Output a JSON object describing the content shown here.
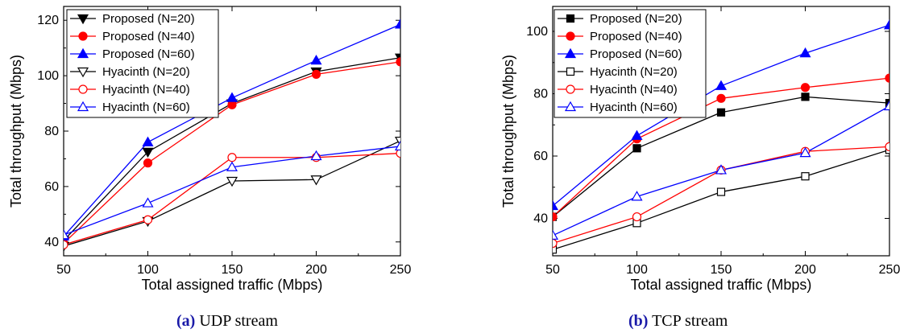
{
  "chart_data": [
    {
      "type": "line",
      "xlabel": "Total assigned traffic (Mbps)",
      "ylabel": "Total throughput (Mbps)",
      "x": [
        50,
        100,
        150,
        200,
        250
      ],
      "xlim": [
        50,
        250
      ],
      "ylim": [
        35,
        125
      ],
      "xticks": [
        50,
        100,
        150,
        200,
        250
      ],
      "yticks": [
        40,
        60,
        80,
        100,
        120
      ],
      "grid": false,
      "legend_position": "top-left",
      "series": [
        {
          "name": "Proposed (N=20)",
          "values": [
            40.5,
            72.5,
            90,
            101.5,
            106.5
          ],
          "color": "#000000",
          "marker": "triangle-down",
          "filled": true
        },
        {
          "name": "Proposed (N=40)",
          "values": [
            39.5,
            68.5,
            89.5,
            100.5,
            105
          ],
          "color": "#ff0000",
          "marker": "circle",
          "filled": true
        },
        {
          "name": "Proposed (N=60)",
          "values": [
            42,
            76,
            92,
            105.5,
            118.5
          ],
          "color": "#0000ff",
          "marker": "triangle-up",
          "filled": true
        },
        {
          "name": "Hyacinth (N=20)",
          "values": [
            38.5,
            47.5,
            62,
            62.5,
            76.5
          ],
          "color": "#000000",
          "marker": "triangle-down",
          "filled": false
        },
        {
          "name": "Hyacinth (N=40)",
          "values": [
            39,
            48,
            70.5,
            70.5,
            72
          ],
          "color": "#ff0000",
          "marker": "circle",
          "filled": false
        },
        {
          "name": "Hyacinth (N=60)",
          "values": [
            42.5,
            54,
            67,
            71,
            74.5
          ],
          "color": "#0000ff",
          "marker": "triangle-up",
          "filled": false
        }
      ],
      "caption_label": "(a)",
      "caption_text": "UDP stream"
    },
    {
      "type": "line",
      "xlabel": "Total assigned traffic (Mbps)",
      "ylabel": "Total throughput (Mbps)",
      "x": [
        50,
        100,
        150,
        200,
        250
      ],
      "xlim": [
        50,
        250
      ],
      "ylim": [
        28,
        108
      ],
      "xticks": [
        50,
        100,
        150,
        200,
        250
      ],
      "yticks": [
        40,
        60,
        80,
        100
      ],
      "grid": false,
      "legend_position": "top-left",
      "series": [
        {
          "name": "Proposed (N=20)",
          "values": [
            40.5,
            62.5,
            74,
            79,
            77
          ],
          "color": "#000000",
          "marker": "square",
          "filled": true
        },
        {
          "name": "Proposed (N=40)",
          "values": [
            40.5,
            65.5,
            78.5,
            82,
            85
          ],
          "color": "#ff0000",
          "marker": "circle",
          "filled": true
        },
        {
          "name": "Proposed (N=60)",
          "values": [
            44,
            66.5,
            82.5,
            93,
            102
          ],
          "color": "#0000ff",
          "marker": "triangle-up",
          "filled": true
        },
        {
          "name": "Hyacinth (N=20)",
          "values": [
            30,
            38.5,
            48.5,
            53.5,
            62
          ],
          "color": "#000000",
          "marker": "square",
          "filled": false
        },
        {
          "name": "Hyacinth (N=40)",
          "values": [
            32,
            40.5,
            55.5,
            61.5,
            63
          ],
          "color": "#ff0000",
          "marker": "circle",
          "filled": false
        },
        {
          "name": "Hyacinth (N=60)",
          "values": [
            34.5,
            47,
            55.5,
            61,
            76
          ],
          "color": "#0000ff",
          "marker": "triangle-up",
          "filled": false
        }
      ],
      "caption_label": "(b)",
      "caption_text": "TCP stream"
    }
  ]
}
